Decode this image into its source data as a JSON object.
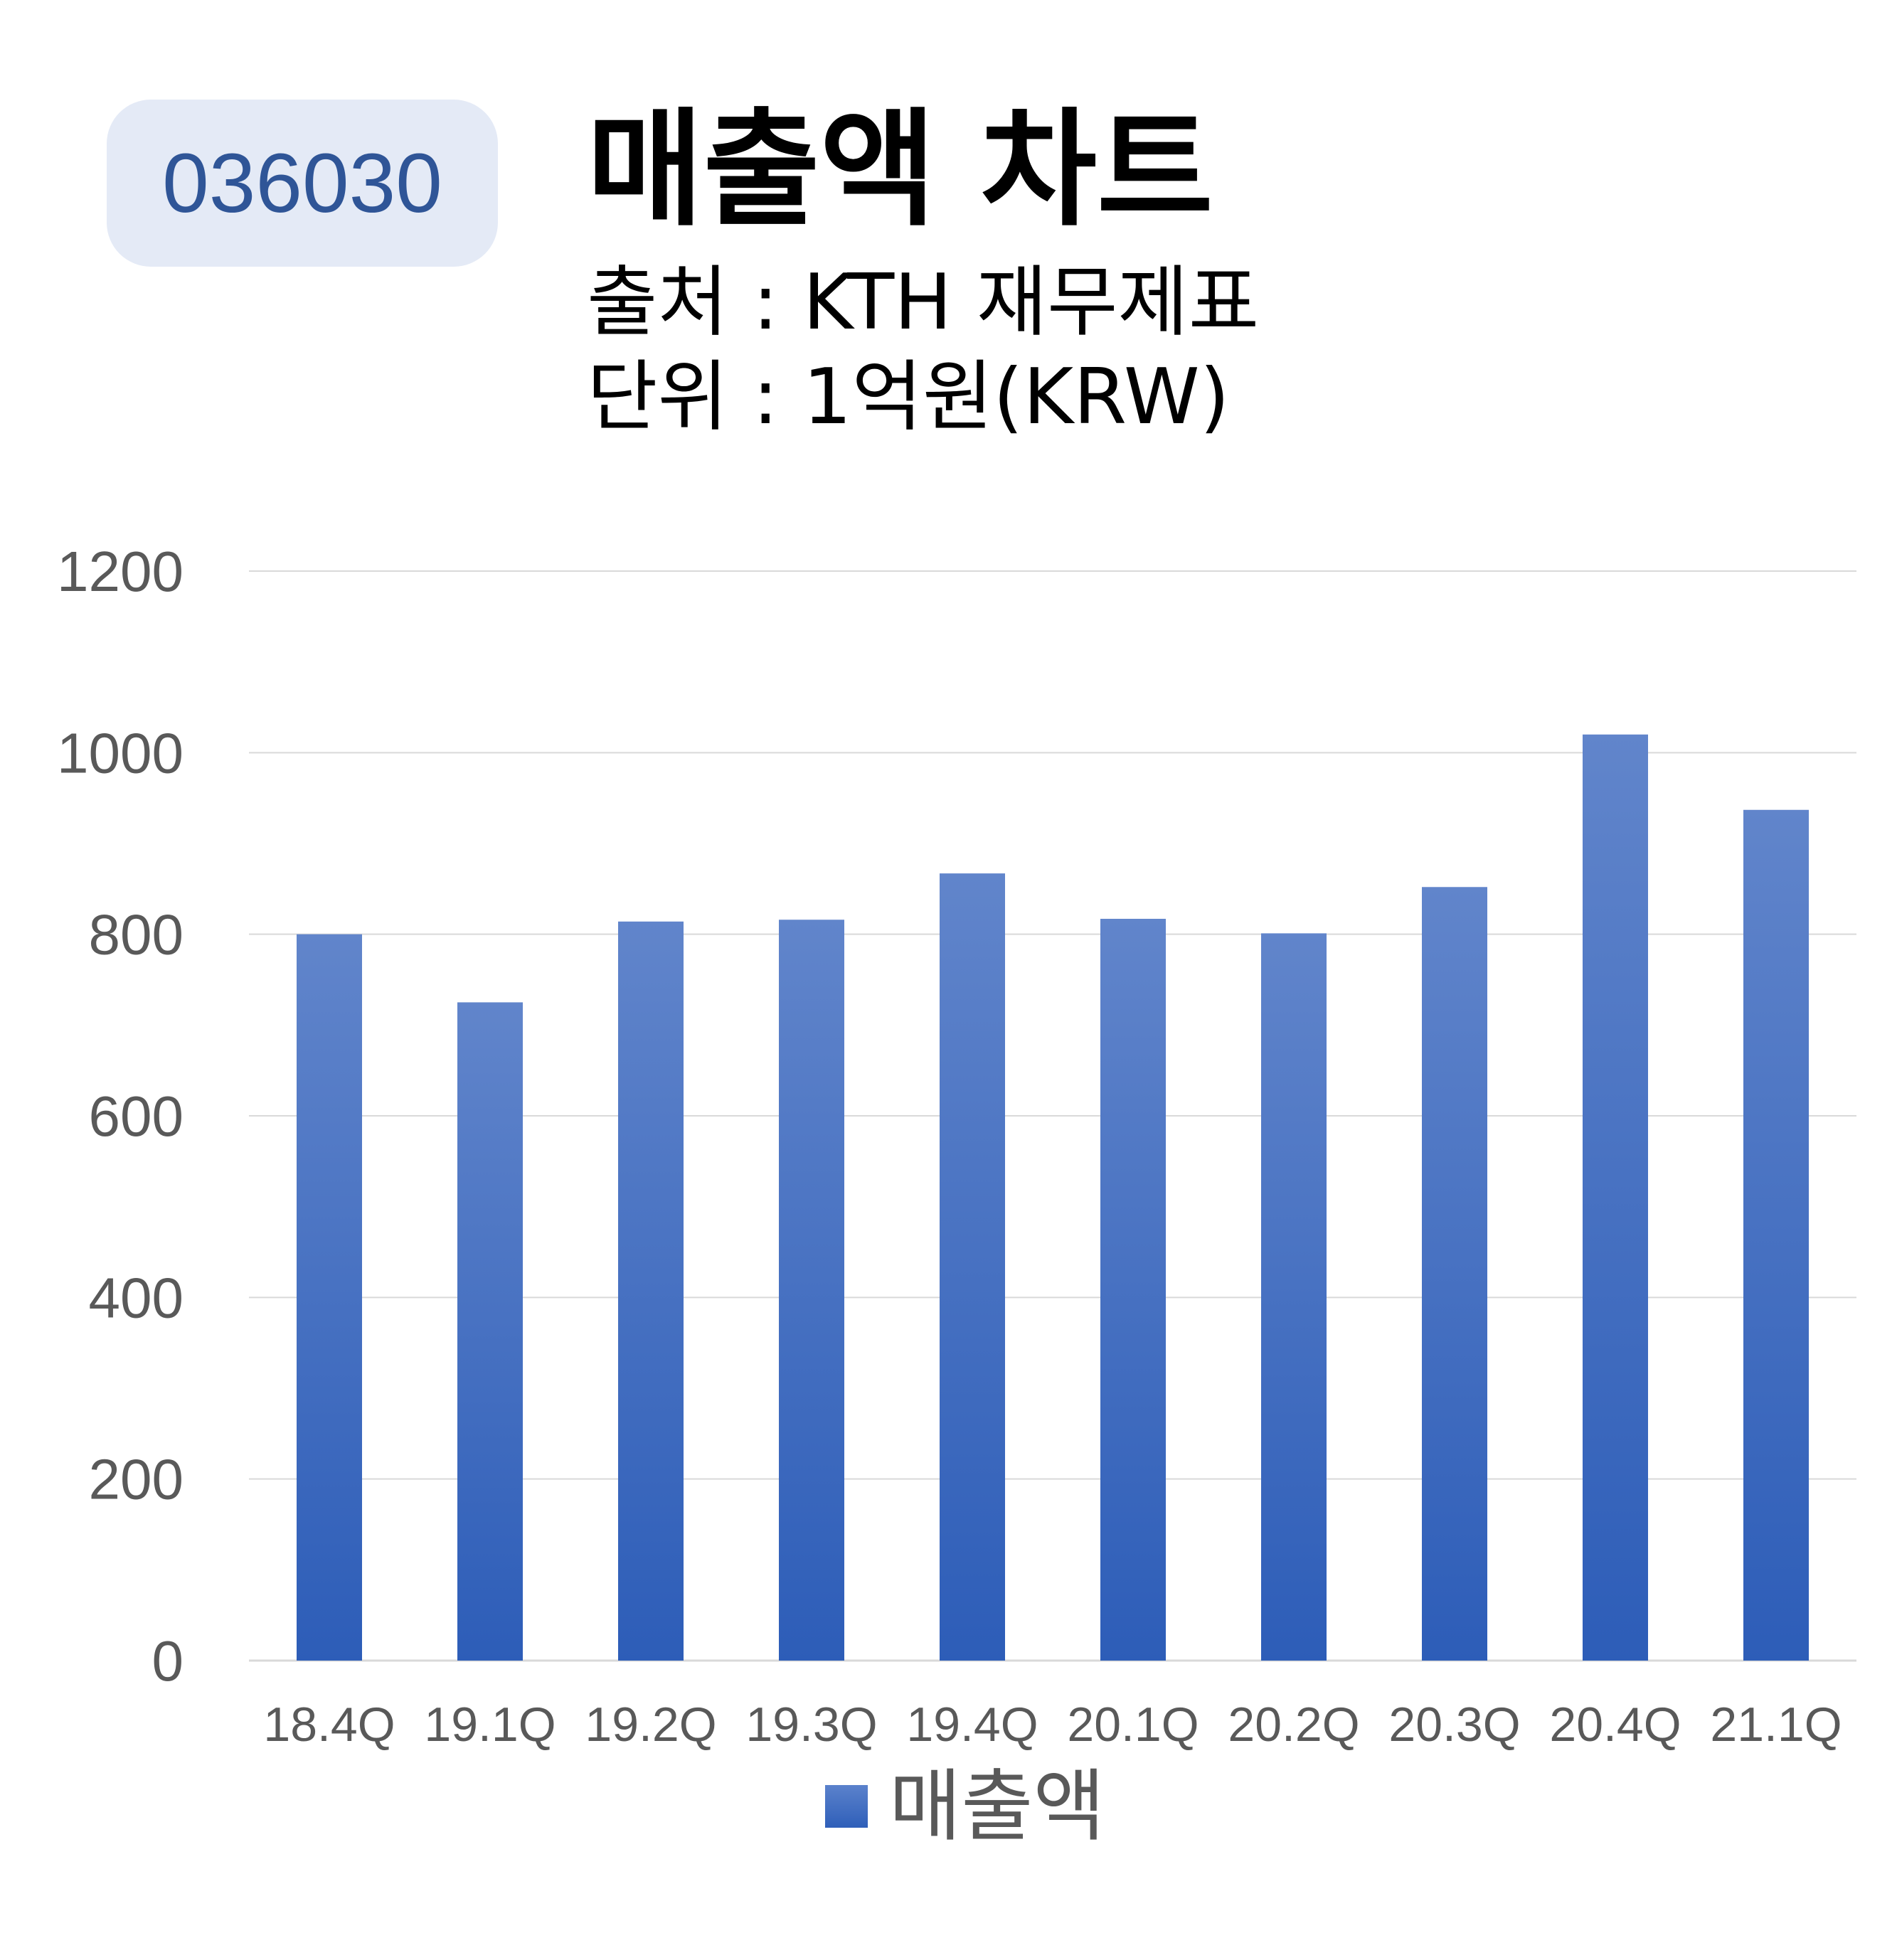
{
  "badge": {
    "ticker": "036030"
  },
  "header": {
    "title": "매출액 차트",
    "source": "출처 : KTH 재무제표",
    "unit": "단위 : 1억원(KRW)"
  },
  "chart_data": {
    "type": "bar",
    "categories": [
      "18.4Q",
      "19.1Q",
      "19.2Q",
      "19.3Q",
      "19.4Q",
      "20.1Q",
      "20.2Q",
      "20.3Q",
      "20.4Q",
      "21.1Q"
    ],
    "series": [
      {
        "name": "매출액",
        "values": [
          800,
          725,
          814,
          816,
          867,
          817,
          801,
          852,
          1020,
          937
        ]
      }
    ],
    "yticks": [
      "0",
      "200",
      "400",
      "600",
      "800",
      "1000",
      "1200"
    ],
    "ylim": [
      0,
      1200
    ],
    "grid": true,
    "legend": "bottom",
    "colors": {
      "bar_top": "#6185cb",
      "bar_bottom": "#2d5db8",
      "grid": "#d9d9d9",
      "axis_text": "#595959"
    }
  }
}
